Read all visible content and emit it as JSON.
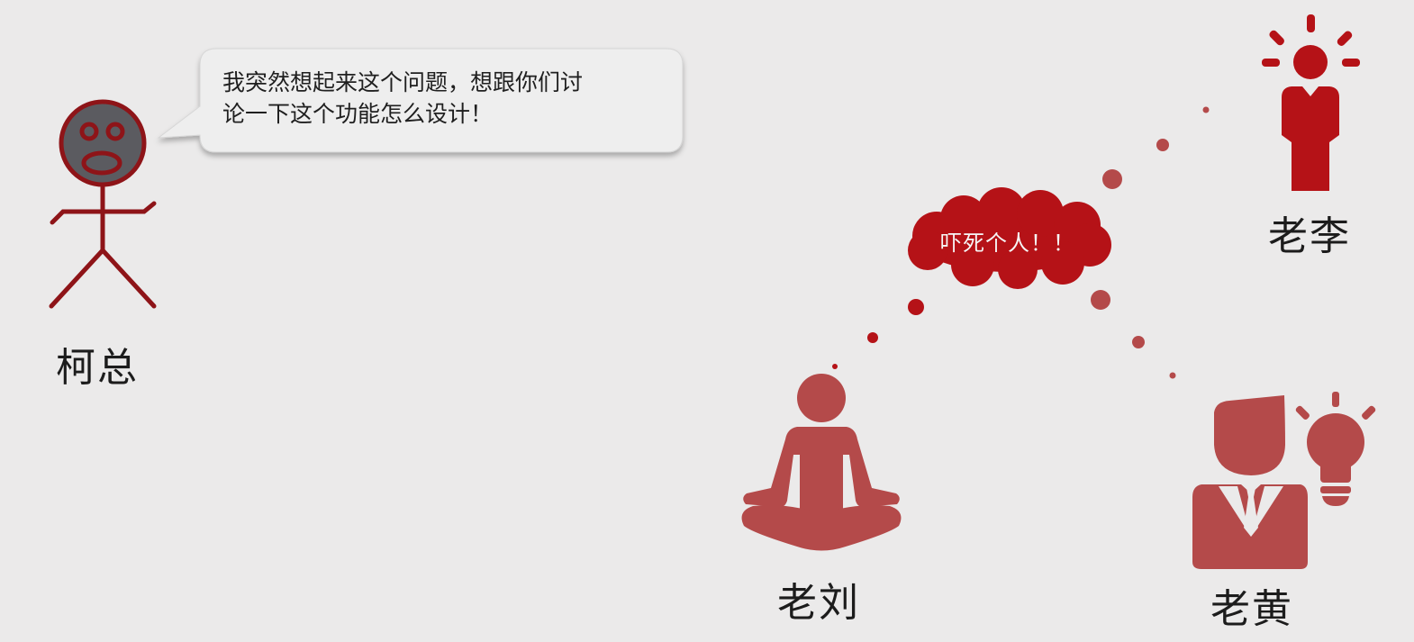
{
  "speech_bubble": {
    "line1": "我突然想起来这个问题，想跟你们讨",
    "line2": "论一下这个功能怎么设计！"
  },
  "thought_cloud": {
    "text": "吓死个人！！"
  },
  "characters": {
    "ke": {
      "name": "柯总",
      "icon": "stick-figure-icon"
    },
    "li": {
      "name": "老李",
      "icon": "person-idea-icon"
    },
    "liu": {
      "name": "老刘",
      "icon": "meditating-person-icon"
    },
    "huang": {
      "name": "老黄",
      "icon": "businessman-lightbulb-icon"
    }
  },
  "colors": {
    "background": "#ebeaea",
    "primary_red": "#b51217",
    "muted_red": "#b44a4a",
    "stick_red": "#8e1418",
    "face_gray": "#5b5b60"
  }
}
